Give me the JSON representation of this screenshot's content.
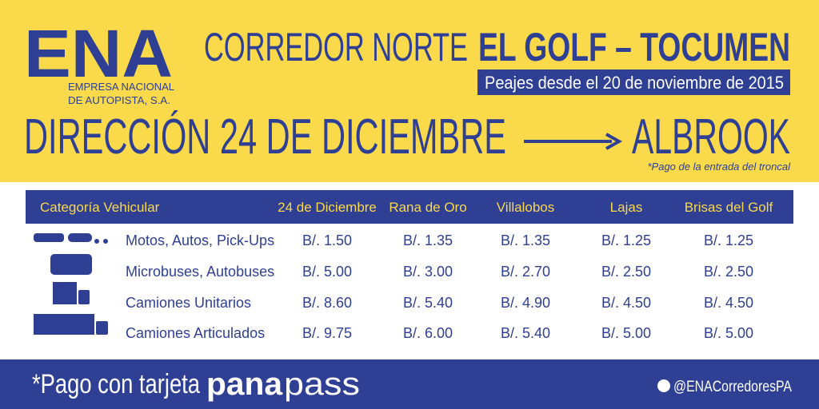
{
  "header": {
    "logo": "ENA",
    "logo_line1": "EMPRESA NACIONAL",
    "logo_line2": "DE AUTOPISTA, S.A.",
    "title_part1": "CORREDOR NORTE",
    "title_part2": "EL GOLF – TOCUMEN",
    "subtitle": "Peajes desde el 20 de noviembre de 2015",
    "direction": "DIRECCIÓN 24 DE DICIEMBRE",
    "destination": "ALBROOK",
    "note": "*Pago de la entrada del troncal"
  },
  "table": {
    "columns": [
      "Categoría Vehicular",
      "24 de Diciembre",
      "Rana de Oro",
      "Villalobos",
      "Lajas",
      "Brisas del Golf"
    ],
    "rows": [
      [
        "Motos, Autos, Pick-Ups",
        "B/. 1.50",
        "B/. 1.35",
        "B/. 1.35",
        "B/. 1.25",
        "B/. 1.25"
      ],
      [
        "Microbuses, Autobuses",
        "B/. 5.00",
        "B/. 3.00",
        "B/. 2.70",
        "B/. 2.50",
        "B/. 2.50"
      ],
      [
        "Camiones Unitarios",
        "B/. 8.60",
        "B/. 5.40",
        "B/. 4.90",
        "B/. 4.50",
        "B/. 4.50"
      ],
      [
        "Camiones Articulados",
        "B/. 9.75",
        "B/. 6.00",
        "B/. 5.40",
        "B/. 5.00",
        "B/. 5.00"
      ]
    ]
  },
  "footer": {
    "payment": "*Pago con tarjeta",
    "brand_bold": "pana",
    "brand_light": "pass",
    "twitter": "@ENACorredoresPA"
  }
}
